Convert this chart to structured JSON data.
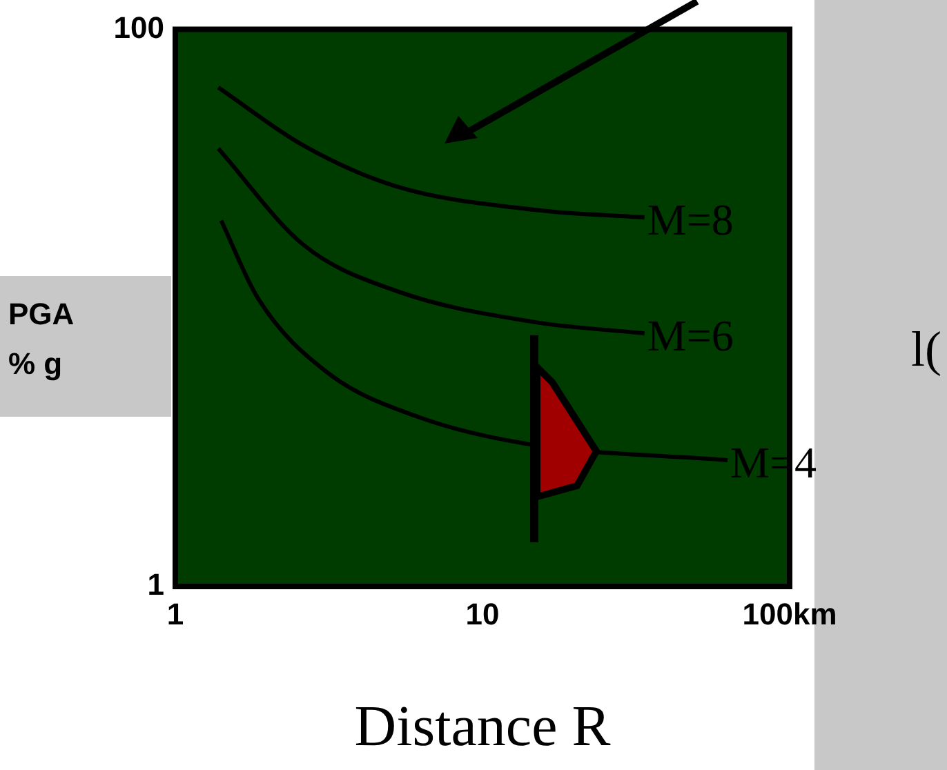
{
  "chart_data": {
    "type": "line",
    "xlabel": "Distance R",
    "ylabel": "PGA\n% g",
    "log": "xy",
    "xlim": [
      1,
      100
    ],
    "ylim": [
      1,
      100
    ],
    "xticks": [
      1,
      10,
      {
        "value": 100,
        "label": "100km"
      }
    ],
    "yticks": [
      1,
      100
    ],
    "grid": false,
    "legend": false,
    "marker": "none",
    "line_style": "solid",
    "annotations": [
      "l("
    ],
    "series": [
      {
        "name": "M=8",
        "color": "#000000",
        "x": [
          1.38,
          2.62,
          5.24,
          14.7,
          33.7
        ],
        "values": [
          61.8,
          38.2,
          27.3,
          22.5,
          21.1
        ]
      },
      {
        "name": "M=6",
        "color": "#000000",
        "x": [
          1.38,
          2.62,
          5.24,
          14.7,
          33.7
        ],
        "values": [
          37.3,
          16.8,
          11.5,
          8.9,
          8.1
        ]
      },
      {
        "name": "M=4",
        "color": "#000000",
        "x": [
          1.41,
          1.86,
          3.12,
          6.18,
          14.2,
          62.8
        ],
        "values": [
          20.6,
          10.8,
          5.87,
          4.06,
          3.24,
          2.84
        ]
      }
    ]
  }
}
